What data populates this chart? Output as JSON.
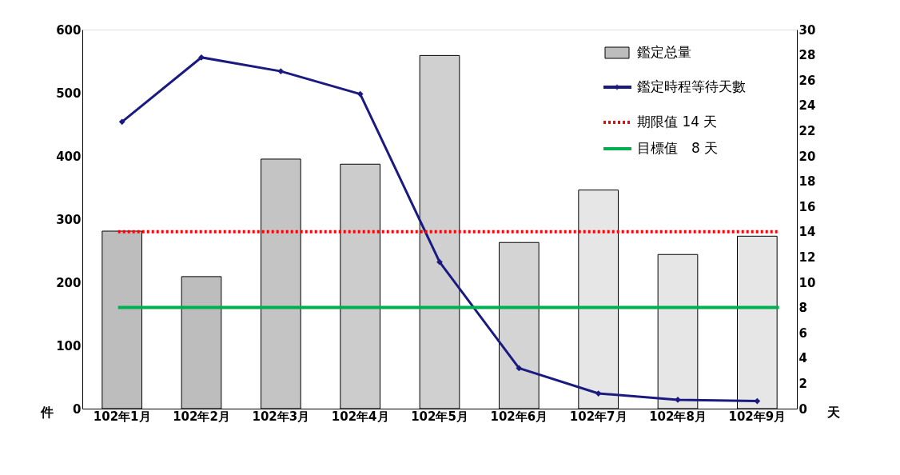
{
  "chart_data": {
    "type": "bar",
    "categories": [
      "102年1月",
      "102年2月",
      "102年3月",
      "102年4月",
      "102年5月",
      "102年6月",
      "102年7月",
      "102年8月",
      "102年9月"
    ],
    "ylabel": "件",
    "y2label": "天",
    "series": [
      {
        "name": "鑑定总量",
        "colors": [
          "#bdbdbd",
          "#bdbdbd",
          "#c4c4c4",
          "#cccccc",
          "#d0d0d0",
          "#d4d4d4",
          "#e6e6e6",
          "#e6e6e6",
          "#e6e6e6"
        ],
        "values": [
          281,
          209,
          395,
          387,
          559,
          263,
          346,
          244,
          273
        ]
      },
      {
        "name": "鑑定時程等待天數",
        "type": "line",
        "axis": "y2",
        "color": "#1a1a80",
        "marker": "diamond",
        "line_style": "solid",
        "values": [
          22.7,
          27.8,
          26.7,
          24.9,
          11.6,
          3.2,
          1.2,
          0.7,
          0.6
        ]
      }
    ],
    "ylim": [
      0,
      600
    ],
    "yticks": [
      0,
      100,
      200,
      300,
      400,
      500,
      600
    ],
    "y2lim": [
      0,
      30
    ],
    "y2ticks": [
      0,
      2,
      4,
      6,
      8,
      10,
      12,
      14,
      16,
      18,
      20,
      22,
      24,
      26,
      28,
      30
    ],
    "ref_lines": [
      {
        "axis": "y2",
        "value": 14,
        "label": "期限值 14 天",
        "color": "#ff0000",
        "line_style": "dotted"
      },
      {
        "axis": "y2",
        "value": 8,
        "label": "目標值　8 天",
        "color": "#00b050",
        "line_style": "solid"
      }
    ],
    "grid": false,
    "legend": "top right"
  }
}
